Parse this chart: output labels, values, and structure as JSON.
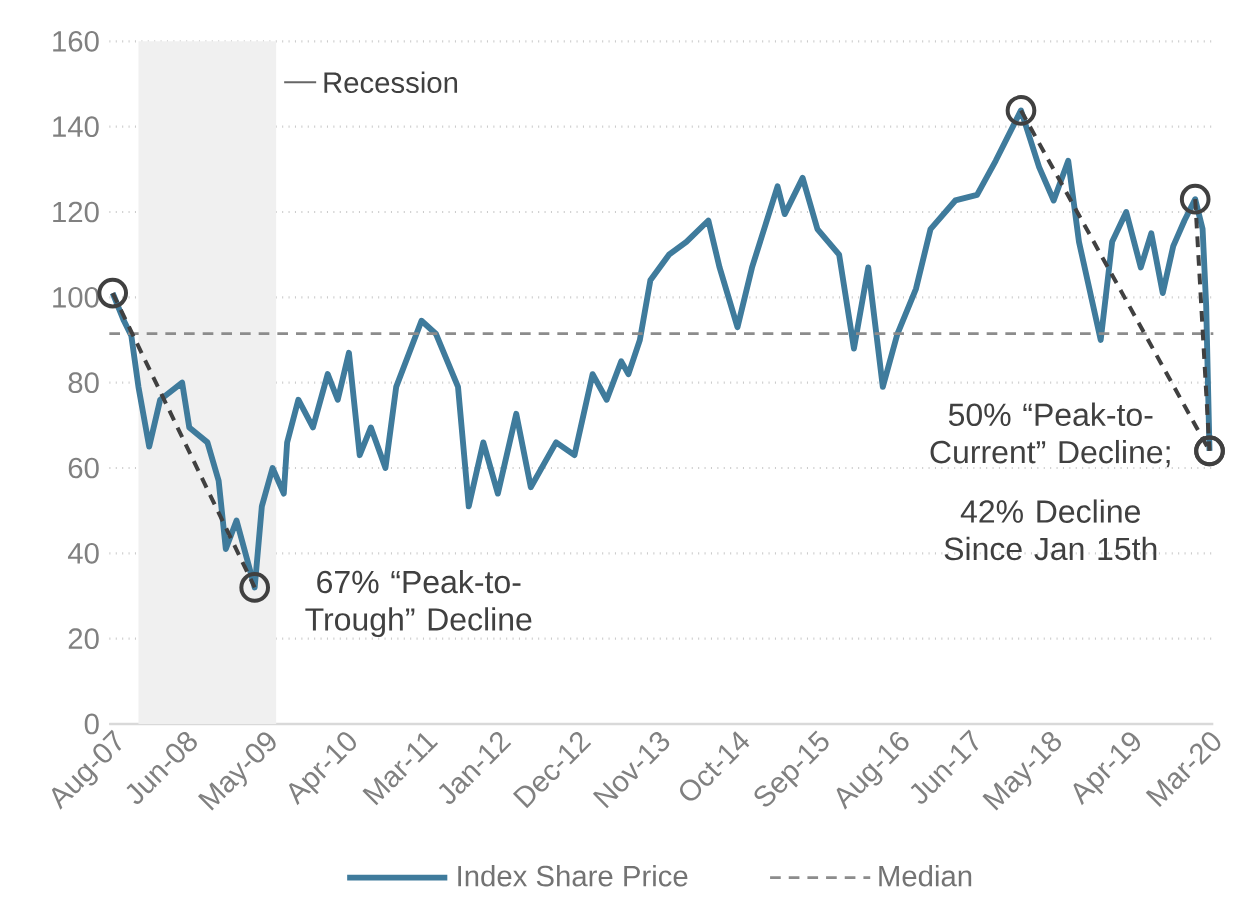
{
  "chart_data": {
    "type": "line",
    "x": [
      "2007-08-15",
      "2007-10-01",
      "2007-11-01",
      "2007-12-01",
      "2008-01-15",
      "2008-03-01",
      "2008-06-01",
      "2008-07-01",
      "2008-09-15",
      "2008-11-01",
      "2008-12-01",
      "2009-01-15",
      "2009-04-01",
      "2009-05-01",
      "2009-06-15",
      "2009-08-01",
      "2009-08-15",
      "2009-10-01",
      "2009-12-01",
      "2010-02-01",
      "2010-03-15",
      "2010-05-01",
      "2010-06-15",
      "2010-08-01",
      "2010-10-01",
      "2010-11-15",
      "2011-03-01",
      "2011-05-01",
      "2011-08-01",
      "2011-09-15",
      "2011-11-15",
      "2012-01-15",
      "2012-04-01",
      "2012-06-01",
      "2012-09-15",
      "2012-12-01",
      "2013-02-15",
      "2013-04-15",
      "2013-06-15",
      "2013-07-15",
      "2013-09-01",
      "2013-10-15",
      "2014-01-01",
      "2014-03-15",
      "2014-06-15",
      "2014-08-01",
      "2014-10-15",
      "2014-12-15",
      "2015-04-01",
      "2015-05-01",
      "2015-07-15",
      "2015-09-15",
      "2015-12-15",
      "2016-02-15",
      "2016-04-15",
      "2016-06-15",
      "2016-08-15",
      "2016-11-01",
      "2017-01-01",
      "2017-04-15",
      "2017-07-15",
      "2017-10-01",
      "2018-01-15",
      "2018-04-01",
      "2018-06-01",
      "2018-08-01",
      "2018-09-15",
      "2018-12-15",
      "2019-02-01",
      "2019-04-01",
      "2019-06-01",
      "2019-07-15",
      "2019-09-01",
      "2019-10-15",
      "2019-12-01",
      "2020-01-15",
      "2020-02-15",
      "2020-03-01",
      "2020-03-15"
    ],
    "series": [
      {
        "name": "Index Share Price",
        "color": "#3f7b9c",
        "values": [
          101,
          94.5,
          91,
          79,
          65,
          76,
          80,
          69.5,
          66,
          57,
          41,
          47.7,
          32,
          51,
          60,
          54,
          66,
          76,
          69.5,
          82,
          76,
          87,
          63,
          69.5,
          60,
          79,
          94.5,
          91.4,
          79,
          51,
          66,
          54,
          72.7,
          55.5,
          66,
          63,
          82,
          76,
          85,
          82,
          90,
          104,
          110,
          113,
          118,
          107,
          93,
          107,
          126,
          119.5,
          128,
          116,
          110,
          88,
          107,
          79,
          91.4,
          102,
          116,
          122.7,
          124,
          132,
          143.8,
          130.5,
          122.7,
          132,
          113,
          90,
          113,
          120,
          107,
          115,
          101,
          112,
          118,
          123,
          116,
          98,
          64
        ]
      },
      {
        "type": "line",
        "x": [
          "2007-08-15",
          "2009-04-01"
        ],
        "values": [
          101,
          32
        ],
        "color": "#404040",
        "line_style": "dashed",
        "marker": "circle"
      },
      {
        "type": "line",
        "x": [
          "2018-01-15",
          "2020-03-15"
        ],
        "values": [
          143.8,
          64
        ],
        "color": "#404040",
        "line_style": "dashed",
        "marker": "circle"
      },
      {
        "type": "line",
        "x": [
          "2020-01-15",
          "2020-03-15"
        ],
        "values": [
          123,
          64
        ],
        "color": "#404040",
        "line_style": "dashed",
        "marker": "circle"
      }
    ],
    "xlim": [
      "2007-08-01",
      "2020-03-31"
    ],
    "xticks": [
      {
        "value": "2007-08-15",
        "label": "Aug-07"
      },
      {
        "value": "2008-06-15",
        "label": "Jun-08"
      },
      {
        "value": "2009-05-15",
        "label": "May-09"
      },
      {
        "value": "2010-04-15",
        "label": "Apr-10"
      },
      {
        "value": "2011-03-15",
        "label": "Mar-11"
      },
      {
        "value": "2012-01-15",
        "label": "Jan-12"
      },
      {
        "value": "2012-12-15",
        "label": "Dec-12"
      },
      {
        "value": "2013-11-15",
        "label": "Nov-13"
      },
      {
        "value": "2014-10-15",
        "label": "Oct-14"
      },
      {
        "value": "2015-09-15",
        "label": "Sep-15"
      },
      {
        "value": "2016-08-15",
        "label": "Aug-16"
      },
      {
        "value": "2017-06-15",
        "label": "Jun-17"
      },
      {
        "value": "2018-05-15",
        "label": "May-18"
      },
      {
        "value": "2019-04-15",
        "label": "Apr-19"
      },
      {
        "value": "2020-03-15",
        "label": "Mar-20"
      }
    ],
    "ylim": [
      0,
      160
    ],
    "yticks": [
      0,
      20,
      40,
      60,
      80,
      100,
      120,
      140,
      160
    ],
    "grid": "y",
    "legend": "bottom",
    "ref_lines": [
      {
        "axis": "y",
        "value": 91.5,
        "label": "Median",
        "color": "#8c8c8c",
        "line_style": "dashed"
      }
    ],
    "bands": [
      {
        "axis": "x",
        "from": "2007-12-01",
        "to": "2009-06-30",
        "label": "Recession",
        "color": "#f0f0f0"
      }
    ],
    "annotations": [
      {
        "text": "67% “Peak-to-Trough” Decline",
        "x": "2009-04-01",
        "y": 32
      },
      {
        "text": "50% “Peak-to-Current” Decline;",
        "x": "2020-03-15",
        "y": 64
      },
      "42% Decline Since Jan 15th"
    ]
  }
}
